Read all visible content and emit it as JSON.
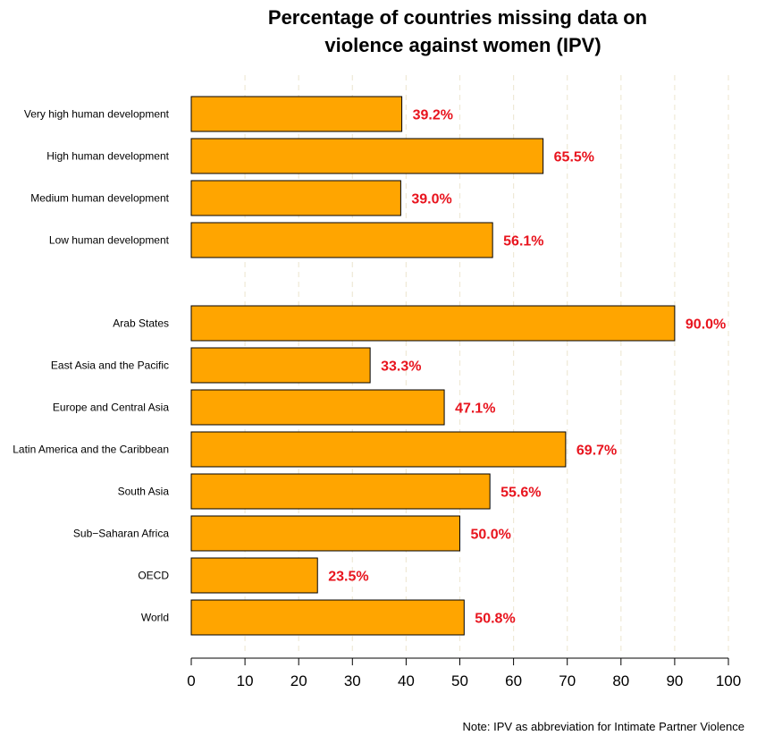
{
  "chart_data": {
    "type": "bar",
    "orientation": "horizontal",
    "title_lines": [
      "Percentage of countries missing data on",
      "violence against women (IPV)"
    ],
    "note": "Note: IPV as abbreviation for Intimate Partner Violence",
    "groups": [
      {
        "categories": [
          "Very high human development",
          "High human development",
          "Medium human development",
          "Low human development"
        ],
        "values": [
          39.2,
          65.5,
          39.0,
          56.1
        ],
        "labels": [
          "39.2%",
          "65.5%",
          "39.0%",
          "56.1%"
        ]
      },
      {
        "categories": [
          "Arab States",
          "East Asia and the Pacific",
          "Europe and Central Asia",
          "Latin America and the Caribbean",
          "South Asia",
          "Sub−Saharan Africa",
          "OECD",
          "World"
        ],
        "values": [
          90.0,
          33.3,
          47.1,
          69.7,
          55.6,
          50.0,
          23.5,
          50.8
        ],
        "labels": [
          "90.0%",
          "33.3%",
          "47.1%",
          "69.7%",
          "55.6%",
          "50.0%",
          "23.5%",
          "50.8%"
        ]
      }
    ],
    "xlim": [
      0,
      100
    ],
    "xticks": [
      0,
      10,
      20,
      30,
      40,
      50,
      60,
      70,
      80,
      90,
      100
    ],
    "grid": "vertical dashed",
    "bar_color": "#FFA500",
    "label_color": "#E8141E",
    "grid_color": "#EFE9D6"
  }
}
